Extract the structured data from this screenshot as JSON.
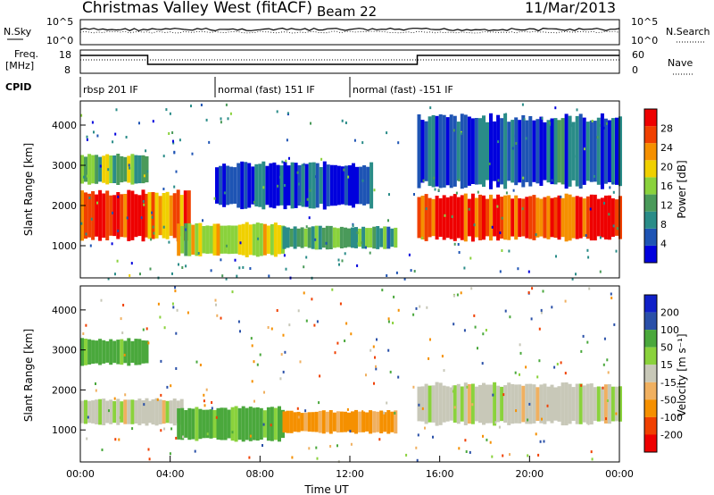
{
  "header": {
    "station": "Christmas Valley West (fitACF)",
    "beam": "Beam 22",
    "date": "11/Mar/2013"
  },
  "noise_panel": {
    "left_label": "N.Sky",
    "right_label": "N.Search",
    "left_ticks": [
      "10^5",
      "10^0"
    ],
    "right_ticks": [
      "10^5",
      "10^0"
    ]
  },
  "freq_panel": {
    "left_label_1": "Freq.",
    "left_label_2": "[MHz]",
    "right_label": "Nave",
    "left_ticks": [
      "18",
      "8"
    ],
    "right_ticks": [
      "60",
      "0"
    ]
  },
  "cpid": {
    "label": "CPID",
    "segments": [
      {
        "text": "rbsp 201 IF",
        "start_hour": 0,
        "end_hour": 6
      },
      {
        "text": "normal (fast) 151 IF",
        "start_hour": 6,
        "end_hour": 12
      },
      {
        "text": "normal (fast) -151 IF",
        "start_hour": 12,
        "end_hour": 24
      }
    ]
  },
  "colors": {
    "power": [
      "#0000dd",
      "#1e54b4",
      "#2a8c88",
      "#4a9a5a",
      "#8ad23c",
      "#f0d000",
      "#f59000",
      "#f04000",
      "#ee0000"
    ],
    "velocity": [
      "#ee0000",
      "#f04000",
      "#f59000",
      "#f0b060",
      "#c8c8b8",
      "#8ad23c",
      "#4aa83c",
      "#2a50a8",
      "#1020c8"
    ]
  },
  "chart_data": [
    {
      "type": "heatmap",
      "panel": "power",
      "ylabel": "Slant Range [km]",
      "y_ticks": [
        "1000",
        "2000",
        "3000",
        "4000"
      ],
      "ylim": [
        200,
        4600
      ],
      "colorbar_label": "Power [dB]",
      "colorbar_ticks": [
        "4",
        "8",
        "12",
        "16",
        "20",
        "24",
        "28"
      ],
      "colorbar_range": [
        0,
        32
      ],
      "bands": [
        {
          "hour_start": 0.0,
          "hour_end": 3.0,
          "range_low": 1100,
          "range_high": 2400,
          "power_db": 28
        },
        {
          "hour_start": 0.0,
          "hour_end": 3.0,
          "range_low": 2500,
          "range_high": 3300,
          "power_db": 14
        },
        {
          "hour_start": 3.0,
          "hour_end": 4.8,
          "range_low": 1100,
          "range_high": 2400,
          "power_db": 24
        },
        {
          "hour_start": 4.3,
          "hour_end": 9.0,
          "range_low": 700,
          "range_high": 1600,
          "power_db": 18
        },
        {
          "hour_start": 9.0,
          "hour_end": 14.0,
          "range_low": 900,
          "range_high": 1500,
          "power_db": 12
        },
        {
          "hour_start": 6.0,
          "hour_end": 13.0,
          "range_low": 1900,
          "range_high": 3100,
          "power_db": 5
        },
        {
          "hour_start": 15.0,
          "hour_end": 24.0,
          "range_low": 1100,
          "range_high": 2300,
          "power_db": 28
        },
        {
          "hour_start": 15.0,
          "hour_end": 24.0,
          "range_low": 2400,
          "range_high": 4300,
          "power_db": 6
        }
      ]
    },
    {
      "type": "heatmap",
      "panel": "velocity",
      "ylabel": "Slant Range [km]",
      "y_ticks": [
        "1000",
        "2000",
        "3000",
        "4000"
      ],
      "ylim": [
        200,
        4600
      ],
      "xlabel": "Time UT",
      "x_ticks": [
        "00:00",
        "04:00",
        "08:00",
        "12:00",
        "16:00",
        "20:00",
        "00:00"
      ],
      "colorbar_label": "Velocity [m s⁻¹]",
      "colorbar_ticks": [
        "200",
        "100",
        "50",
        "15",
        "-15",
        "-50",
        "-100",
        "-200"
      ],
      "bands": [
        {
          "hour_start": 0.0,
          "hour_end": 3.0,
          "range_low": 1100,
          "range_high": 1800,
          "velocity": 0
        },
        {
          "hour_start": 0.0,
          "hour_end": 3.0,
          "range_low": 2600,
          "range_high": 3300,
          "velocity": 60
        },
        {
          "hour_start": 3.0,
          "hour_end": 4.5,
          "range_low": 1100,
          "range_high": 1800,
          "velocity": 0
        },
        {
          "hour_start": 4.3,
          "hour_end": 9.0,
          "range_low": 700,
          "range_high": 1600,
          "velocity": 60
        },
        {
          "hour_start": 9.0,
          "hour_end": 14.0,
          "range_low": 900,
          "range_high": 1500,
          "velocity": -60
        },
        {
          "hour_start": 15.0,
          "hour_end": 24.0,
          "range_low": 1100,
          "range_high": 2200,
          "velocity": 0
        }
      ]
    }
  ]
}
